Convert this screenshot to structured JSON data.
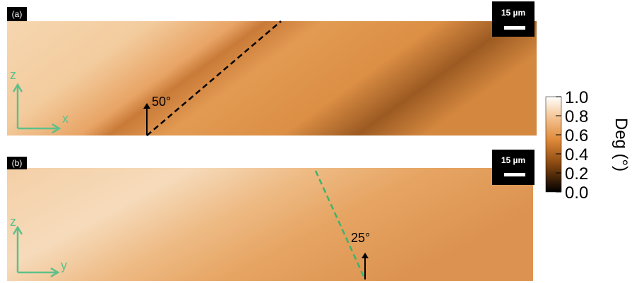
{
  "panels": [
    {
      "label": "(a)",
      "scale_bar": "15 µm",
      "axis_labels": [
        "z",
        "x"
      ],
      "angle": "50°"
    },
    {
      "label": "(b)",
      "scale_bar": "15 µm",
      "axis_labels": [
        "z",
        "y"
      ],
      "angle": "25°"
    }
  ],
  "colorbar": {
    "label": "Deg (°)",
    "lim": [
      0,
      1
    ],
    "ticks": [
      {
        "value": 0,
        "label": "0.0"
      },
      {
        "value": 0.2,
        "label": "0.2"
      },
      {
        "value": 0.4,
        "label": "0.4"
      },
      {
        "value": 0.6,
        "label": "0.6"
      },
      {
        "value": 0.8,
        "label": "0.8"
      },
      {
        "value": 1,
        "label": "1.0"
      }
    ]
  }
}
